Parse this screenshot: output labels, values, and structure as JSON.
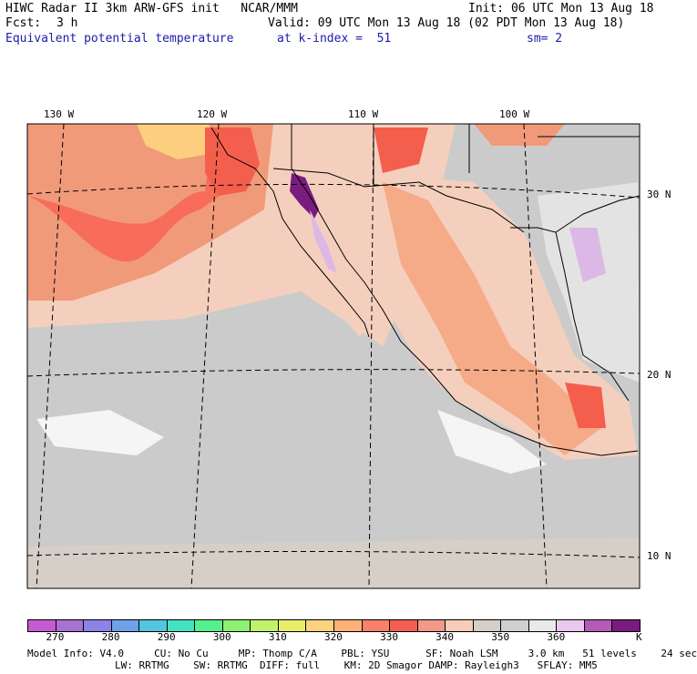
{
  "header": {
    "line1_left": "HIWC Radar II 3km ARW-GFS init   NCAR/MMM",
    "line1_right": "Init: 06 UTC Mon 13 Aug 18",
    "fcst_label": "Fcst:",
    "fcst_value": "3 h",
    "valid": "Valid: 09 UTC Mon 13 Aug 18 (02 PDT Mon 13 Aug 18)",
    "field_name": "Equivalent potential temperature",
    "level": "at k-index =  51",
    "smoothing": "sm= 2"
  },
  "map": {
    "lon_labels": [
      "130 W",
      "120 W",
      "110 W",
      "100 W"
    ],
    "lat_labels": [
      "30 N",
      "20 N",
      "10 N"
    ],
    "colors": {
      "ocean_warm": "#f19a7a",
      "ocean_hot": "#f76d5a",
      "pale_orange": "#f5cfbd",
      "gray": "#cbcbcb",
      "light_gray": "#e3e3e3",
      "white": "#f5f5f5",
      "orange": "#f6ab88",
      "yellow": "#fbcf7d",
      "red": "#f35f4c",
      "lavender": "#dcb8e6",
      "purple": "#7a1b7f"
    }
  },
  "colorbar": {
    "colors": [
      "#c65bd1",
      "#a772d0",
      "#8c82e8",
      "#6ea1ea",
      "#52c6e0",
      "#43e3c1",
      "#56ef8f",
      "#8ff171",
      "#c1f26b",
      "#e7ef6a",
      "#fcd37d",
      "#fbb178",
      "#f7816a",
      "#f35f52",
      "#f39988",
      "#f5cdb9",
      "#d6cfc8",
      "#cfcfcf",
      "#e9e9e9",
      "#ebc8ef",
      "#b35bb5",
      "#7a1b7f"
    ],
    "labels": [
      "270",
      "280",
      "290",
      "300",
      "310",
      "320",
      "330",
      "340",
      "350",
      "360"
    ],
    "unit": "K"
  },
  "footer": {
    "line1": "Model Info: V4.0     CU: No Cu     MP: Thomp C/A    PBL: YSU      SF: Noah LSM     3.0 km   51 levels    24 sec",
    "line2": "LW: RRTMG    SW: RRTMG  DIFF: full    KM: 2D Smagor DAMP: Rayleigh3   SFLAY: MM5"
  }
}
